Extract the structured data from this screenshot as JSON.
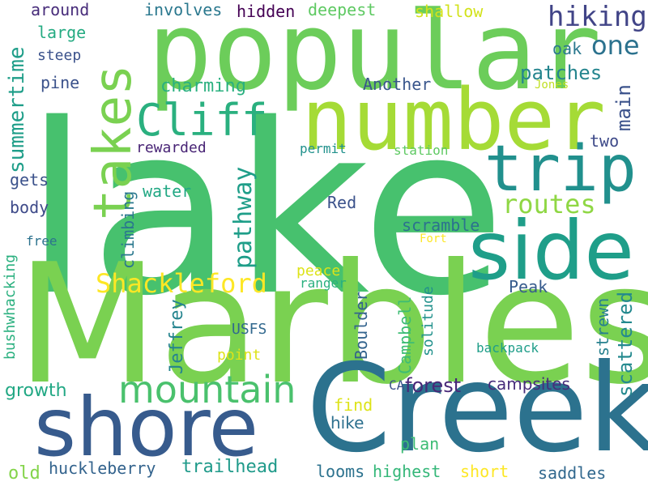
{
  "words": [
    {
      "text": "lake",
      "color": "#47c16e"
    },
    {
      "text": "Marbles",
      "color": "#7ad151"
    },
    {
      "text": "Creek",
      "color": "#2c728e"
    },
    {
      "text": "popular",
      "color": "#6ccd5a"
    },
    {
      "text": "number",
      "color": "#a5db36"
    },
    {
      "text": "shore",
      "color": "#375b8d"
    },
    {
      "text": "side",
      "color": "#1f9e89"
    },
    {
      "text": "trip",
      "color": "#21908d"
    },
    {
      "text": "takes",
      "color": "#7ad151"
    },
    {
      "text": "Cliff",
      "color": "#2ab07f"
    },
    {
      "text": "mountain",
      "color": "#4ac16d"
    },
    {
      "text": "hiking",
      "color": "#414487"
    },
    {
      "text": "one",
      "color": "#2c728e"
    },
    {
      "text": "Shackleford",
      "color": "#fde725"
    },
    {
      "text": "routes",
      "color": "#8fd744"
    },
    {
      "text": "pathway",
      "color": "#1f9e89"
    },
    {
      "text": "summertime",
      "color": "#1f9e89"
    },
    {
      "text": "patches",
      "color": "#25858e"
    },
    {
      "text": "charming",
      "color": "#2ab07f"
    },
    {
      "text": "main",
      "color": "#3b528b"
    },
    {
      "text": "forest",
      "color": "#482878"
    },
    {
      "text": "campsites",
      "color": "#472d7b"
    },
    {
      "text": "scattered",
      "color": "#23898e"
    },
    {
      "text": "strewn",
      "color": "#27808e"
    },
    {
      "text": "growth",
      "color": "#22a884"
    },
    {
      "text": "hike",
      "color": "#2d708e"
    },
    {
      "text": "Jeffrey",
      "color": "#25848e"
    },
    {
      "text": "Campbell",
      "color": "#3dbc74"
    },
    {
      "text": "solitude",
      "color": "#21918c"
    },
    {
      "text": "Boulder",
      "color": "#33638d"
    },
    {
      "text": "trailhead",
      "color": "#1f9a8a"
    },
    {
      "text": "huckleberry",
      "color": "#33638d"
    },
    {
      "text": "highest",
      "color": "#35b779"
    },
    {
      "text": "looms",
      "color": "#2c728e"
    },
    {
      "text": "short",
      "color": "#fde725"
    },
    {
      "text": "saddles",
      "color": "#31688e"
    },
    {
      "text": "old",
      "color": "#84d44b"
    },
    {
      "text": "plan",
      "color": "#3dbc74"
    },
    {
      "text": "find",
      "color": "#dde318"
    },
    {
      "text": "Peak",
      "color": "#375b8d"
    },
    {
      "text": "Red",
      "color": "#3b528b"
    },
    {
      "text": "scramble",
      "color": "#2c728e"
    },
    {
      "text": "water",
      "color": "#22a884"
    },
    {
      "text": "climbing",
      "color": "#2a788e"
    },
    {
      "text": "body",
      "color": "#3e4a89"
    },
    {
      "text": "gets",
      "color": "#3b528b"
    },
    {
      "text": "rewarded",
      "color": "#482475"
    },
    {
      "text": "two",
      "color": "#3e4a89"
    },
    {
      "text": "oak",
      "color": "#2a788e"
    },
    {
      "text": "pine",
      "color": "#3b528b"
    },
    {
      "text": "steep",
      "color": "#3b528b"
    },
    {
      "text": "large",
      "color": "#25ab82"
    },
    {
      "text": "around",
      "color": "#472c7a"
    },
    {
      "text": "involves",
      "color": "#2a788e"
    },
    {
      "text": "hidden",
      "color": "#440154"
    },
    {
      "text": "deepest",
      "color": "#5ec962"
    },
    {
      "text": "shallow",
      "color": "#d2e21b"
    },
    {
      "text": "Another",
      "color": "#39568c"
    },
    {
      "text": "Jones",
      "color": "#c0df25"
    },
    {
      "text": "permit",
      "color": "#21918c"
    },
    {
      "text": "station",
      "color": "#5ec962"
    },
    {
      "text": "peace",
      "color": "#dde318"
    },
    {
      "text": "ranger",
      "color": "#2ab07f"
    },
    {
      "text": "Fort",
      "color": "#fde725"
    },
    {
      "text": "USFS",
      "color": "#31688e"
    },
    {
      "text": "point",
      "color": "#dde318"
    },
    {
      "text": "backpack",
      "color": "#1f9e89"
    },
    {
      "text": "CA",
      "color": "#3b528b"
    },
    {
      "text": "bushwhacking",
      "color": "#2ab07f"
    },
    {
      "text": "free",
      "color": "#2c728e"
    }
  ]
}
